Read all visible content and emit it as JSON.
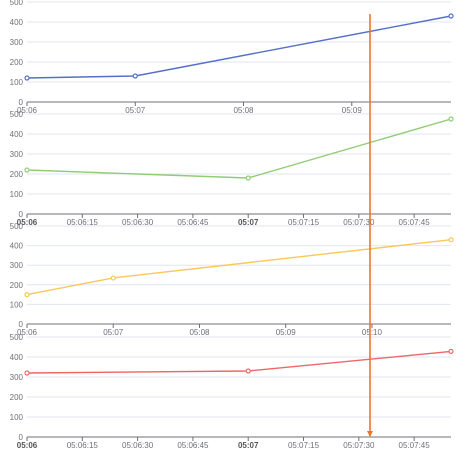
{
  "colors": {
    "axis": "#6e7079",
    "grid": "#e0e6f1",
    "cursor": "#e8782a"
  },
  "chart_data": [
    {
      "type": "line",
      "color": "#5470c6",
      "ylim": [
        0,
        500
      ],
      "yticks": [
        "0",
        "100",
        "200",
        "300",
        "400",
        "500"
      ],
      "xlim": [
        "05:06:00",
        "05:09:55"
      ],
      "xticks": [
        {
          "label": "05:06",
          "t": "05:06:00",
          "bold": false
        },
        {
          "label": "05:07",
          "t": "05:07:00",
          "bold": false
        },
        {
          "label": "05:08",
          "t": "05:08:00",
          "bold": false
        },
        {
          "label": "05:09",
          "t": "05:09:00",
          "bold": false
        }
      ],
      "points": [
        {
          "t": "05:06:00",
          "y": 120
        },
        {
          "t": "05:07:00",
          "y": 130
        },
        {
          "t": "05:09:55",
          "y": 430
        }
      ]
    },
    {
      "type": "line",
      "color": "#91cc75",
      "ylim": [
        0,
        500
      ],
      "yticks": [
        "0",
        "100",
        "200",
        "300",
        "400",
        "500"
      ],
      "xlim": [
        "05:06:00",
        "05:07:55"
      ],
      "xticks": [
        {
          "label": "05:06",
          "t": "05:06:00",
          "bold": true
        },
        {
          "label": "05:06:15",
          "t": "05:06:15",
          "bold": false
        },
        {
          "label": "05:06:30",
          "t": "05:06:30",
          "bold": false
        },
        {
          "label": "05:06:45",
          "t": "05:06:45",
          "bold": false
        },
        {
          "label": "05:07",
          "t": "05:07:00",
          "bold": true
        },
        {
          "label": "05:07:15",
          "t": "05:07:15",
          "bold": false
        },
        {
          "label": "05:07:30",
          "t": "05:07:30",
          "bold": false
        },
        {
          "label": "05:07:45",
          "t": "05:07:45",
          "bold": false
        }
      ],
      "points": [
        {
          "t": "05:06:00",
          "y": 220
        },
        {
          "t": "05:07:00",
          "y": 180
        },
        {
          "t": "05:07:55",
          "y": 475
        }
      ]
    },
    {
      "type": "line",
      "color": "#fac858",
      "ylim": [
        0,
        500
      ],
      "yticks": [
        "0",
        "100",
        "200",
        "300",
        "400",
        "500"
      ],
      "xlim": [
        "05:06:00",
        "05:10:55"
      ],
      "xticks": [
        {
          "label": "05:06",
          "t": "05:06:00",
          "bold": false
        },
        {
          "label": "05:07",
          "t": "05:07:00",
          "bold": false
        },
        {
          "label": "05:08",
          "t": "05:08:00",
          "bold": false
        },
        {
          "label": "05:09",
          "t": "05:09:00",
          "bold": false
        },
        {
          "label": "05:10",
          "t": "05:10:00",
          "bold": false
        }
      ],
      "points": [
        {
          "t": "05:06:00",
          "y": 150
        },
        {
          "t": "05:07:00",
          "y": 235
        },
        {
          "t": "05:10:55",
          "y": 430
        }
      ]
    },
    {
      "type": "line",
      "color": "#ee6666",
      "ylim": [
        0,
        500
      ],
      "yticks": [
        "0",
        "100",
        "200",
        "300",
        "400",
        "500"
      ],
      "xlim": [
        "05:06:00",
        "05:07:55"
      ],
      "xticks": [
        {
          "label": "05:06",
          "t": "05:06:00",
          "bold": true
        },
        {
          "label": "05:06:15",
          "t": "05:06:15",
          "bold": false
        },
        {
          "label": "05:06:30",
          "t": "05:06:30",
          "bold": false
        },
        {
          "label": "05:06:45",
          "t": "05:06:45",
          "bold": false
        },
        {
          "label": "05:07",
          "t": "05:07:00",
          "bold": true
        },
        {
          "label": "05:07:15",
          "t": "05:07:15",
          "bold": false
        },
        {
          "label": "05:07:30",
          "t": "05:07:30",
          "bold": false
        },
        {
          "label": "05:07:45",
          "t": "05:07:45",
          "bold": false
        }
      ],
      "points": [
        {
          "t": "05:06:00",
          "y": 320
        },
        {
          "t": "05:07:00",
          "y": 330
        },
        {
          "t": "05:07:55",
          "y": 428
        }
      ]
    }
  ]
}
